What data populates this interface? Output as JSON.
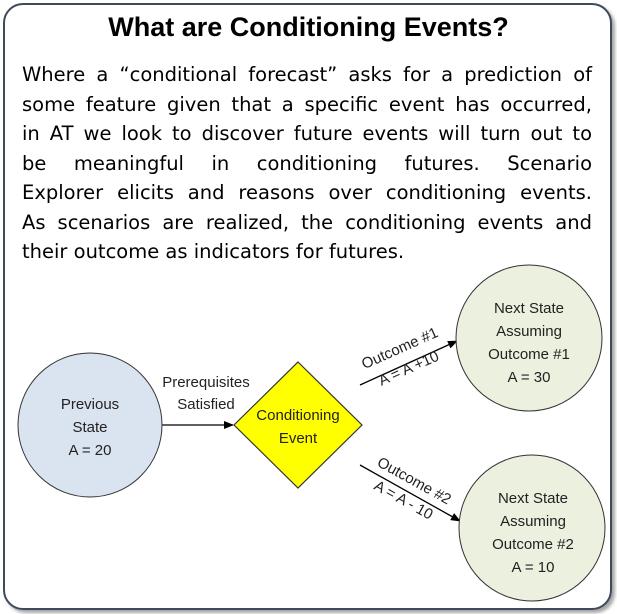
{
  "title": "What are Conditioning Events?",
  "paragraph_lines": [
    "Where a “conditional forecast” asks for a prediction of",
    "some feature given that a specific event has occurred,",
    "in AT we look to discover future events will turn out to",
    "be meaningful in conditioning futures. Scenario",
    "Explorer elicits and reasons over conditioning events.",
    "As scenarios are realized, the conditioning events and",
    "their outcome as indicators for futures."
  ],
  "diagram": {
    "previous_state": {
      "lines": [
        "Previous",
        "State",
        "A = 20"
      ],
      "fill": "#dae3f0"
    },
    "edge_prerequisites": {
      "lines": [
        "Prerequisites",
        "Satisfied"
      ]
    },
    "conditioning_event": {
      "lines": [
        "Conditioning",
        "Event"
      ],
      "fill": "#ffff00"
    },
    "edge_outcome1": {
      "lines": [
        "Outcome #1",
        "A = A +10"
      ]
    },
    "edge_outcome2": {
      "lines": [
        "Outcome #2",
        "A = A - 10"
      ]
    },
    "next_state1": {
      "lines": [
        "Next State",
        "Assuming",
        "Outcome #1",
        "A = 30"
      ],
      "fill": "#ebf0df"
    },
    "next_state2": {
      "lines": [
        "Next State",
        "Assuming",
        "Outcome #2",
        "A = 10"
      ],
      "fill": "#ebf0df"
    }
  }
}
